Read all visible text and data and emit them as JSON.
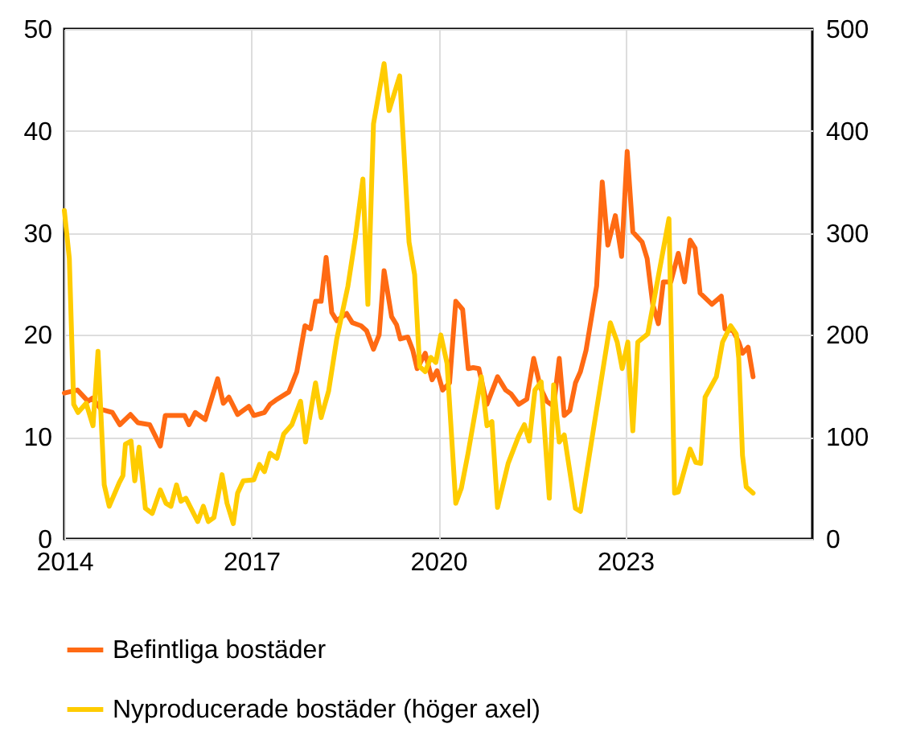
{
  "chart_data": {
    "type": "line",
    "xlim": [
      2014,
      2026
    ],
    "xticks": [
      2014,
      2017,
      2020,
      2023
    ],
    "ylim": [
      0,
      50
    ],
    "yticks": [
      0,
      10,
      20,
      30,
      40,
      50
    ],
    "y2lim": [
      0,
      500
    ],
    "y2ticks": [
      0,
      100,
      200,
      300,
      400,
      500
    ],
    "grid": true,
    "legend": "bottom",
    "line_style": "solid",
    "marker": "none",
    "series": [
      {
        "name": "Befintliga bostäder",
        "color": "#ff6a13",
        "x": [
          2014.0,
          2014.21,
          2014.38,
          2014.45,
          2014.59,
          2014.77,
          2014.89,
          2015.06,
          2015.18,
          2015.37,
          2015.54,
          2015.62,
          2015.93,
          2016.0,
          2016.1,
          2016.26,
          2016.46,
          2016.55,
          2016.64,
          2016.78,
          2016.96,
          2017.04,
          2017.21,
          2017.3,
          2017.39,
          2017.6,
          2017.73,
          2017.86,
          2017.95,
          2018.03,
          2018.12,
          2018.2,
          2018.29,
          2018.37,
          2018.53,
          2018.62,
          2018.76,
          2018.85,
          2018.96,
          2019.05,
          2019.13,
          2019.25,
          2019.33,
          2019.39,
          2019.51,
          2019.59,
          2019.66,
          2019.79,
          2019.9,
          2019.98,
          2020.07,
          2020.18,
          2020.28,
          2020.39,
          2020.48,
          2020.56,
          2020.65,
          2020.78,
          2020.95,
          2021.08,
          2021.17,
          2021.29,
          2021.42,
          2021.53,
          2021.64,
          2021.74,
          2021.85,
          2021.94,
          2022.02,
          2022.11,
          2022.2,
          2022.28,
          2022.37,
          2022.54,
          2022.63,
          2022.72,
          2022.84,
          2022.94,
          2023.03,
          2023.12,
          2023.27,
          2023.35,
          2023.44,
          2023.53,
          2023.61,
          2023.73,
          2023.85,
          2023.95,
          2024.04,
          2024.12,
          2024.2,
          2024.39,
          2024.54,
          2024.6,
          2024.73,
          2024.82,
          2024.88,
          2024.97,
          2025.05
        ],
        "values": [
          14.3,
          14.6,
          13.5,
          13.8,
          12.7,
          12.4,
          11.2,
          12.2,
          11.4,
          11.2,
          9.1,
          12.1,
          12.1,
          11.2,
          12.4,
          11.7,
          15.7,
          13.3,
          13.9,
          12.2,
          13.0,
          12.1,
          12.4,
          13.2,
          13.6,
          14.4,
          16.4,
          20.9,
          20.6,
          23.3,
          23.3,
          27.6,
          22.2,
          21.4,
          22.1,
          21.2,
          20.9,
          20.4,
          18.6,
          20.0,
          26.3,
          21.8,
          21.0,
          19.6,
          19.8,
          18.5,
          16.7,
          18.2,
          15.6,
          16.5,
          14.6,
          15.3,
          23.3,
          22.5,
          16.7,
          16.8,
          16.7,
          13.2,
          15.9,
          14.6,
          14.2,
          13.2,
          13.7,
          17.7,
          14.8,
          13.5,
          13.0,
          17.7,
          12.1,
          12.6,
          15.3,
          16.4,
          18.5,
          24.8,
          35.0,
          28.8,
          31.7,
          27.7,
          38.0,
          30.1,
          29.1,
          27.5,
          23.0,
          21.1,
          25.2,
          25.2,
          28.0,
          25.2,
          29.3,
          28.5,
          24.1,
          23.0,
          23.8,
          20.6,
          20.4,
          19.3,
          18.2,
          18.8,
          15.9
        ]
      },
      {
        "name": "Nyproducerade bostäder (höger axel)",
        "color": "#ffcc00",
        "axis": "y2",
        "x": [
          2014.0,
          2014.08,
          2014.15,
          2014.22,
          2014.35,
          2014.46,
          2014.54,
          2014.64,
          2014.72,
          2014.88,
          2014.94,
          2014.98,
          2015.07,
          2015.13,
          2015.2,
          2015.3,
          2015.41,
          2015.54,
          2015.63,
          2015.71,
          2015.8,
          2015.87,
          2015.95,
          2016.14,
          2016.23,
          2016.31,
          2016.4,
          2016.53,
          2016.61,
          2016.71,
          2016.78,
          2016.87,
          2017.04,
          2017.13,
          2017.21,
          2017.3,
          2017.41,
          2017.52,
          2017.65,
          2017.79,
          2017.87,
          2018.03,
          2018.12,
          2018.24,
          2018.37,
          2018.55,
          2018.67,
          2018.79,
          2018.87,
          2018.96,
          2019.13,
          2019.21,
          2019.38,
          2019.53,
          2019.62,
          2019.7,
          2019.79,
          2019.88,
          2019.96,
          2020.04,
          2020.14,
          2020.28,
          2020.37,
          2020.48,
          2020.69,
          2020.78,
          2020.86,
          2020.95,
          2021.12,
          2021.29,
          2021.38,
          2021.46,
          2021.55,
          2021.65,
          2021.78,
          2021.85,
          2021.94,
          2022.02,
          2022.2,
          2022.28,
          2022.76,
          2022.87,
          2022.95,
          2023.04,
          2023.12,
          2023.2,
          2023.36,
          2023.7,
          2023.79,
          2023.85,
          2024.04,
          2024.13,
          2024.21,
          2024.28,
          2024.46,
          2024.56,
          2024.69,
          2024.78,
          2024.82,
          2024.88,
          2024.94,
          2025.05
        ],
        "values": [
          322,
          275,
          132,
          124,
          133,
          111,
          184,
          53,
          32,
          55,
          62,
          93,
          96,
          57,
          90,
          30,
          25,
          48,
          35,
          32,
          53,
          37,
          40,
          17,
          32,
          17,
          21,
          63,
          35,
          15,
          45,
          57,
          58,
          73,
          66,
          84,
          79,
          103,
          112,
          135,
          95,
          153,
          119,
          145,
          196,
          248,
          296,
          353,
          230,
          407,
          466,
          420,
          454,
          291,
          259,
          169,
          164,
          178,
          173,
          200,
          172,
          35,
          50,
          85,
          159,
          111,
          115,
          31,
          74,
          101,
          112,
          96,
          146,
          154,
          40,
          151,
          95,
          102,
          30,
          27,
          212,
          193,
          167,
          193,
          106,
          193,
          201,
          314,
          45,
          46,
          88,
          75,
          74,
          139,
          159,
          193,
          209,
          201,
          177,
          82,
          51,
          45
        ]
      }
    ]
  }
}
